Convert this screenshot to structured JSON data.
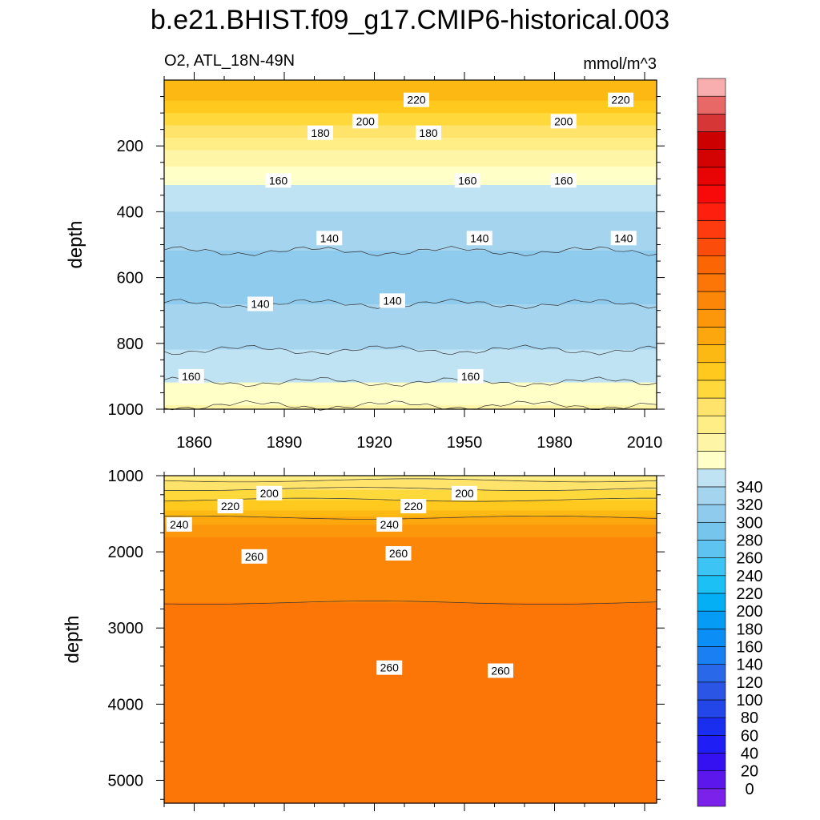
{
  "figure": {
    "title": "b.e21.BHIST.f09_g17.CMIP6-historical.003",
    "left_label": "O2, ATL_18N-49N",
    "right_label": "mmol/m^3"
  },
  "chart_data": [
    {
      "type": "heatmap",
      "name": "upper panel",
      "xlim": [
        1850,
        2014
      ],
      "x_ticks": [
        1860,
        1890,
        1920,
        1950,
        1980,
        2010
      ],
      "ylabel": "depth",
      "ylim": [
        0,
        1000
      ],
      "y_reversed": true,
      "y_ticks": [
        200,
        400,
        600,
        800,
        1000
      ],
      "contour_interval": 10,
      "depth_profile": [
        {
          "depth": 20,
          "value": 226
        },
        {
          "depth": 60,
          "value": 220
        },
        {
          "depth": 100,
          "value": 210
        },
        {
          "depth": 140,
          "value": 200
        },
        {
          "depth": 175,
          "value": 190
        },
        {
          "depth": 215,
          "value": 180
        },
        {
          "depth": 260,
          "value": 170
        },
        {
          "depth": 320,
          "value": 160
        },
        {
          "depth": 400,
          "value": 150
        },
        {
          "depth": 480,
          "value": 142
        },
        {
          "depth": 600,
          "value": 136
        },
        {
          "depth": 700,
          "value": 141
        },
        {
          "depth": 800,
          "value": 148
        },
        {
          "depth": 900,
          "value": 158
        },
        {
          "depth": 960,
          "value": 165
        },
        {
          "depth": 1000,
          "value": 172
        }
      ],
      "contour_labels": [
        {
          "text": "220",
          "x": 1934,
          "y": 60
        },
        {
          "text": "220",
          "x": 2002,
          "y": 60
        },
        {
          "text": "200",
          "x": 1917,
          "y": 125
        },
        {
          "text": "200",
          "x": 1983,
          "y": 125
        },
        {
          "text": "180",
          "x": 1902,
          "y": 160
        },
        {
          "text": "180",
          "x": 1938,
          "y": 160
        },
        {
          "text": "160",
          "x": 1888,
          "y": 305
        },
        {
          "text": "160",
          "x": 1951,
          "y": 305
        },
        {
          "text": "160",
          "x": 1983,
          "y": 305
        },
        {
          "text": "140",
          "x": 1905,
          "y": 480
        },
        {
          "text": "140",
          "x": 1955,
          "y": 480
        },
        {
          "text": "140",
          "x": 2003,
          "y": 480
        },
        {
          "text": "140",
          "x": 1882,
          "y": 680
        },
        {
          "text": "140",
          "x": 1926,
          "y": 670
        },
        {
          "text": "160",
          "x": 1859,
          "y": 900
        },
        {
          "text": "160",
          "x": 1952,
          "y": 900
        }
      ]
    },
    {
      "type": "heatmap",
      "name": "lower panel",
      "xlim": [
        1850,
        2014
      ],
      "x_ticks": [
        1860,
        1890,
        1920,
        1950,
        1980,
        2010
      ],
      "ylabel": "depth",
      "ylim": [
        1000,
        5300
      ],
      "y_reversed": true,
      "y_ticks": [
        1000,
        2000,
        3000,
        4000,
        5000
      ],
      "contour_interval": 10,
      "depth_profile": [
        {
          "depth": 1000,
          "value": 182
        },
        {
          "depth": 1100,
          "value": 195
        },
        {
          "depth": 1250,
          "value": 205
        },
        {
          "depth": 1450,
          "value": 220
        },
        {
          "depth": 1650,
          "value": 240
        },
        {
          "depth": 1800,
          "value": 250
        },
        {
          "depth": 2000,
          "value": 256
        },
        {
          "depth": 3000,
          "value": 262
        },
        {
          "depth": 3550,
          "value": 264
        },
        {
          "depth": 5300,
          "value": 266
        }
      ],
      "contour_labels": [
        {
          "text": "200",
          "x": 1885,
          "y": 1230
        },
        {
          "text": "200",
          "x": 1950,
          "y": 1230
        },
        {
          "text": "220",
          "x": 1872,
          "y": 1400
        },
        {
          "text": "220",
          "x": 1933,
          "y": 1400
        },
        {
          "text": "240",
          "x": 1855,
          "y": 1640
        },
        {
          "text": "240",
          "x": 1925,
          "y": 1640
        },
        {
          "text": "260",
          "x": 1880,
          "y": 2060
        },
        {
          "text": "260",
          "x": 1928,
          "y": 2020
        },
        {
          "text": "260",
          "x": 1925,
          "y": 3520
        },
        {
          "text": "260",
          "x": 1962,
          "y": 3560
        }
      ]
    }
  ],
  "colorbar": {
    "labels": [
      "0",
      "20",
      "40",
      "60",
      "80",
      "100",
      "120",
      "140",
      "160",
      "180",
      "200",
      "220",
      "240",
      "260",
      "280",
      "300",
      "320",
      "340"
    ],
    "colors": [
      "#7b22ea",
      "#5b17ec",
      "#3510f0",
      "#1f1ff5",
      "#1a2ef0",
      "#2346e8",
      "#2a55e5",
      "#2a68ea",
      "#1a7ff2",
      "#0b8ef5",
      "#069cf6",
      "#05aff6",
      "#1cc0f5",
      "#3cc4f4",
      "#5ec3f0",
      "#76c5ed",
      "#8ecbed",
      "#a5d4ef",
      "#bfe3f3",
      "#ffffc8",
      "#fff5a6",
      "#ffed86",
      "#ffe36b",
      "#ffd93b",
      "#ffc91e",
      "#fdb913",
      "#fca70e",
      "#fc960b",
      "#fb8608",
      "#fb7606",
      "#fb6604",
      "#fc4c0b",
      "#fe3a0f",
      "#ff1f0f",
      "#f80a0a",
      "#e80404",
      "#d40303",
      "#cc0000",
      "#d63636",
      "#e86868",
      "#f8aeae"
    ]
  }
}
